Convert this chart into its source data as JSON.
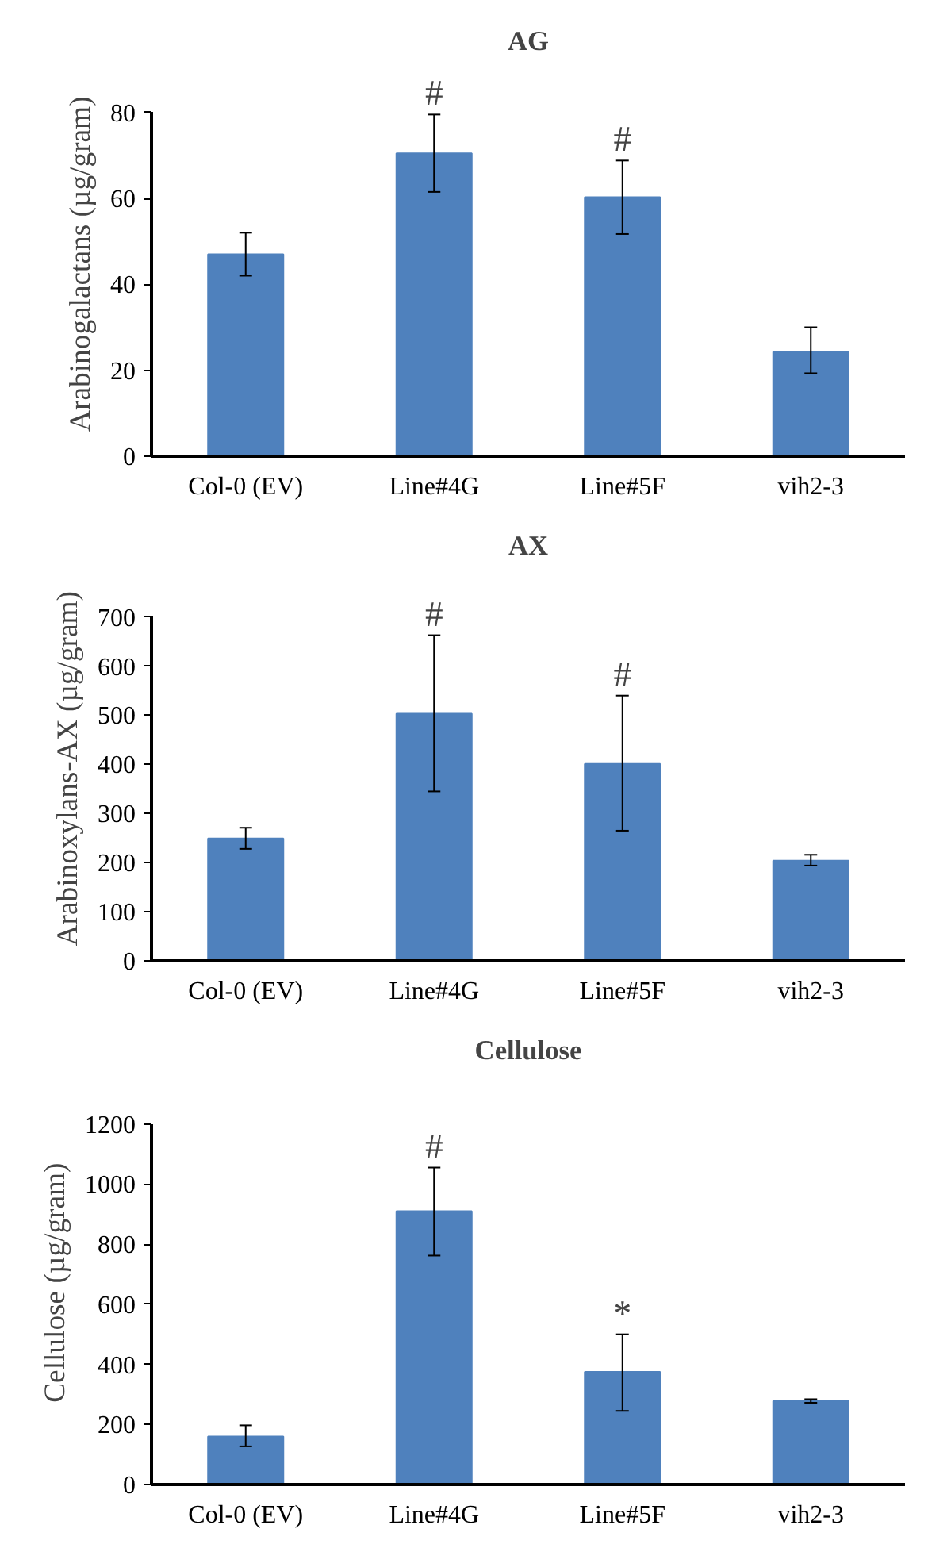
{
  "chart_data": [
    {
      "type": "bar",
      "title": "AG",
      "ylabel": "Arabinogalactans  (µg/gram)",
      "categories": [
        "Col-0 (EV)",
        "Line#4G",
        "Line#5F",
        "vih2-3"
      ],
      "values": [
        47,
        70.5,
        60.3,
        24.3
      ],
      "errors": [
        [
          42,
          52
        ],
        [
          61.5,
          79.5
        ],
        [
          51.7,
          68.8
        ],
        [
          19.3,
          30
        ]
      ],
      "color": "#4f81bd",
      "ylim": [
        0,
        80
      ],
      "yticks": [
        0,
        20,
        40,
        60,
        80
      ],
      "grid": false,
      "annotations": [
        {
          "text": "#",
          "x": "Line#4G",
          "y": 79.5
        },
        {
          "text": "#",
          "x": "Line#5F",
          "y": 68.8
        }
      ]
    },
    {
      "type": "bar",
      "title": "AX",
      "ylabel": "Arabinoxylans-AX  (µg/gram)",
      "categories": [
        "Col-0 (EV)",
        "Line#4G",
        "Line#5F",
        "vih2-3"
      ],
      "values": [
        249,
        503,
        401,
        204
      ],
      "errors": [
        [
          228,
          271
        ],
        [
          345,
          663
        ],
        [
          265,
          540
        ],
        [
          194,
          216
        ]
      ],
      "color": "#4f81bd",
      "ylim": [
        0,
        700
      ],
      "yticks": [
        0,
        100,
        200,
        300,
        400,
        500,
        600,
        700
      ],
      "grid": false,
      "annotations": [
        {
          "text": "#",
          "x": "Line#4G",
          "y": 663
        },
        {
          "text": "#",
          "x": "Line#5F",
          "y": 540
        }
      ]
    },
    {
      "type": "bar",
      "title": "Cellulose",
      "ylabel": "Cellulose  (µg/gram)",
      "categories": [
        "Col-0 (EV)",
        "Line#4G",
        "Line#5F",
        "vih2-3"
      ],
      "values": [
        160,
        910,
        375,
        278
      ],
      "errors": [
        [
          127,
          197
        ],
        [
          762,
          1055
        ],
        [
          245,
          500
        ],
        [
          272,
          284
        ]
      ],
      "color": "#4f81bd",
      "ylim": [
        0,
        1200
      ],
      "yticks": [
        0,
        200,
        400,
        600,
        800,
        1000,
        1200
      ],
      "grid": false,
      "annotations": [
        {
          "text": "#",
          "x": "Line#4G",
          "y": 1055
        },
        {
          "text": "*",
          "x": "Line#5F",
          "y": 500
        }
      ]
    }
  ]
}
